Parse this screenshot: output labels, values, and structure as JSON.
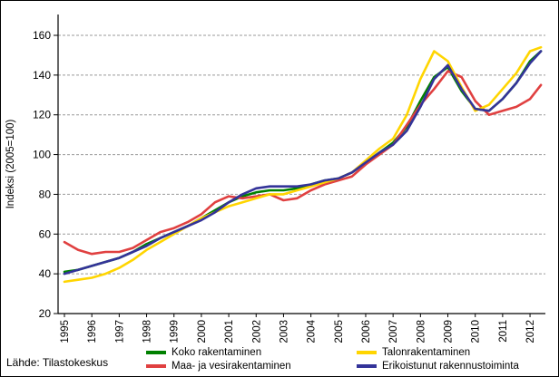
{
  "figure": {
    "source_note": "Lähde: Tilastokeskus",
    "background": "#ffffff",
    "border_color": "#000000"
  },
  "chart_data": {
    "type": "line",
    "title": "",
    "xlabel": "",
    "ylabel": "Indeksi (2005=100)",
    "ylim": [
      20,
      160
    ],
    "yticks": [
      20,
      40,
      60,
      80,
      100,
      120,
      140,
      160
    ],
    "xticks": [
      1995,
      1996,
      1997,
      1998,
      1999,
      2000,
      2001,
      2002,
      2003,
      2004,
      2005,
      2006,
      2007,
      2008,
      2009,
      2010,
      2011,
      2012
    ],
    "xtick_labels": [
      "1995",
      "1996",
      "1997",
      "1998",
      "1999",
      "2000",
      "2001",
      "2002",
      "2003",
      "2004",
      "2005",
      "2006",
      "2007",
      "2008",
      "2009",
      "2010",
      "2011",
      "2012"
    ],
    "grid": "horizontal dashed gray lines at each y tick",
    "legend_position": "bottom, two columns two rows",
    "x": [
      1995,
      1995.5,
      1996,
      1996.5,
      1997,
      1997.5,
      1998,
      1998.5,
      1999,
      1999.5,
      2000,
      2000.5,
      2001,
      2001.5,
      2002,
      2002.5,
      2003,
      2003.5,
      2004,
      2004.5,
      2005,
      2005.5,
      2006,
      2006.5,
      2007,
      2007.5,
      2008,
      2008.5,
      2009,
      2009.5,
      2010,
      2010.5,
      2011,
      2011.5,
      2012,
      2012.4
    ],
    "series": [
      {
        "name": "Koko rakentaminen",
        "color": "#008000",
        "values": [
          41,
          42,
          44,
          46,
          48,
          51,
          55,
          58,
          61,
          64,
          68,
          72,
          76,
          79,
          81,
          82,
          82,
          83,
          85,
          87,
          88,
          91,
          96,
          101,
          106,
          114,
          127,
          139,
          144,
          132,
          123,
          122,
          128,
          136,
          147,
          152
        ]
      },
      {
        "name": "Maa- ja vesirakentaminen",
        "color": "#e04040",
        "values": [
          56,
          52,
          50,
          51,
          51,
          53,
          57,
          61,
          63,
          66,
          70,
          76,
          79,
          78,
          79,
          80,
          77,
          78,
          82,
          85,
          87,
          89,
          95,
          100,
          105,
          115,
          125,
          133,
          142,
          139,
          127,
          120,
          122,
          124,
          128,
          135
        ]
      },
      {
        "name": "Talonrakentaminen",
        "color": "#ffd500",
        "values": [
          36,
          37,
          38,
          40,
          43,
          47,
          52,
          56,
          60,
          64,
          68,
          71,
          74,
          76,
          78,
          80,
          80,
          82,
          84,
          86,
          88,
          91,
          97,
          103,
          108,
          120,
          138,
          152,
          147,
          134,
          122,
          125,
          133,
          141,
          152,
          154
        ]
      },
      {
        "name": "Erikoistunut rakennustoiminta",
        "color": "#333399",
        "values": [
          40,
          42,
          44,
          46,
          48,
          51,
          54,
          58,
          61,
          64,
          67,
          71,
          76,
          80,
          83,
          84,
          84,
          84,
          85,
          87,
          88,
          91,
          96,
          101,
          105,
          112,
          124,
          138,
          145,
          133,
          123,
          122,
          128,
          136,
          146,
          152
        ]
      }
    ],
    "draw_order": [
      0,
      1,
      2,
      3
    ],
    "legend_grid_order": [
      0,
      2,
      1,
      3
    ]
  }
}
